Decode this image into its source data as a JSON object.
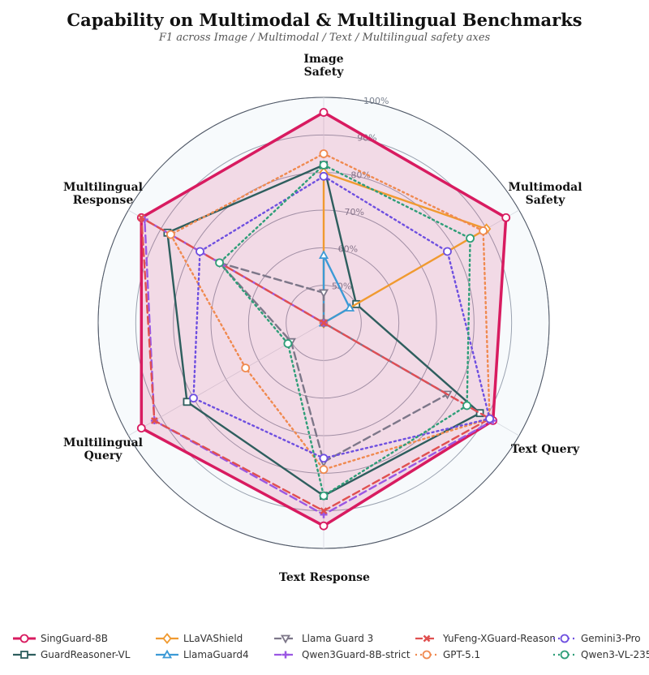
{
  "title": "Capability on Multimodal & Multilingual Benchmarks",
  "subtitle": "F1 across Image / Multimodal / Text / Multilingual safety axes",
  "chart_data": {
    "type": "radar",
    "axes": [
      [
        "Image",
        "Safety"
      ],
      [
        "Multimodal",
        "Safety"
      ],
      [
        "Text Query"
      ],
      [
        "Text Response"
      ],
      [
        "Multilingual",
        "Query"
      ],
      [
        "Multilingual",
        "Response"
      ]
    ],
    "rlim": [
      40,
      100
    ],
    "rticks": [
      50,
      60,
      70,
      80,
      90,
      100
    ],
    "rtick_labels": [
      "50%",
      "60%",
      "70%",
      "80%",
      "90%",
      "100%"
    ],
    "grid": true,
    "legend_position": "bottom",
    "series": [
      {
        "name": "SingGuard-8B",
        "values": [
          96,
          96,
          92,
          94,
          96,
          96
        ],
        "color": "#d81b60",
        "style": "solid",
        "marker": "circle",
        "fill": true
      },
      {
        "name": "GuardReasoner-VL",
        "values": [
          82,
          50,
          88,
          86,
          82,
          88
        ],
        "color": "#2e5e5e",
        "style": "solid",
        "marker": "square"
      },
      {
        "name": "LLaVAShield",
        "values": [
          80,
          90,
          0,
          0,
          0,
          0
        ],
        "color": "#f09a30",
        "style": "solid",
        "marker": "diamond"
      },
      {
        "name": "LlamaGuard4",
        "values": [
          58,
          48,
          0,
          0,
          0,
          0
        ],
        "color": "#3c9ad6",
        "style": "solid",
        "marker": "triangle-up"
      },
      {
        "name": "Llama Guard 3",
        "values": [
          48,
          0,
          78,
          77,
          50,
          72
        ],
        "color": "#7d7789",
        "style": "dashed",
        "marker": "triangle-down"
      },
      {
        "name": "Qwen3Guard-8B-strict",
        "values": [
          0,
          0,
          92,
          91,
          92,
          95
        ],
        "color": "#9b57e3",
        "style": "dashed",
        "marker": "plus"
      },
      {
        "name": "YuFeng-XGuard-Reason",
        "values": [
          0,
          0,
          91,
          90,
          92,
          96
        ],
        "color": "#e05050",
        "style": "dashed",
        "marker": "x"
      },
      {
        "name": "GPT-5.1",
        "values": [
          85,
          89,
          91,
          79,
          64,
          87
        ],
        "color": "#f08a50",
        "style": "dotted",
        "marker": "circle"
      },
      {
        "name": "Gemini3-Pro",
        "values": [
          79,
          78,
          91,
          76,
          80,
          78
        ],
        "color": "#6e4fe0",
        "style": "dotted",
        "marker": "circle"
      },
      {
        "name": "Qwen3-VL-235B",
        "values": [
          82,
          85,
          84,
          86,
          51,
          72
        ],
        "color": "#2e9e78",
        "style": "dotted",
        "marker": "circle"
      }
    ]
  }
}
